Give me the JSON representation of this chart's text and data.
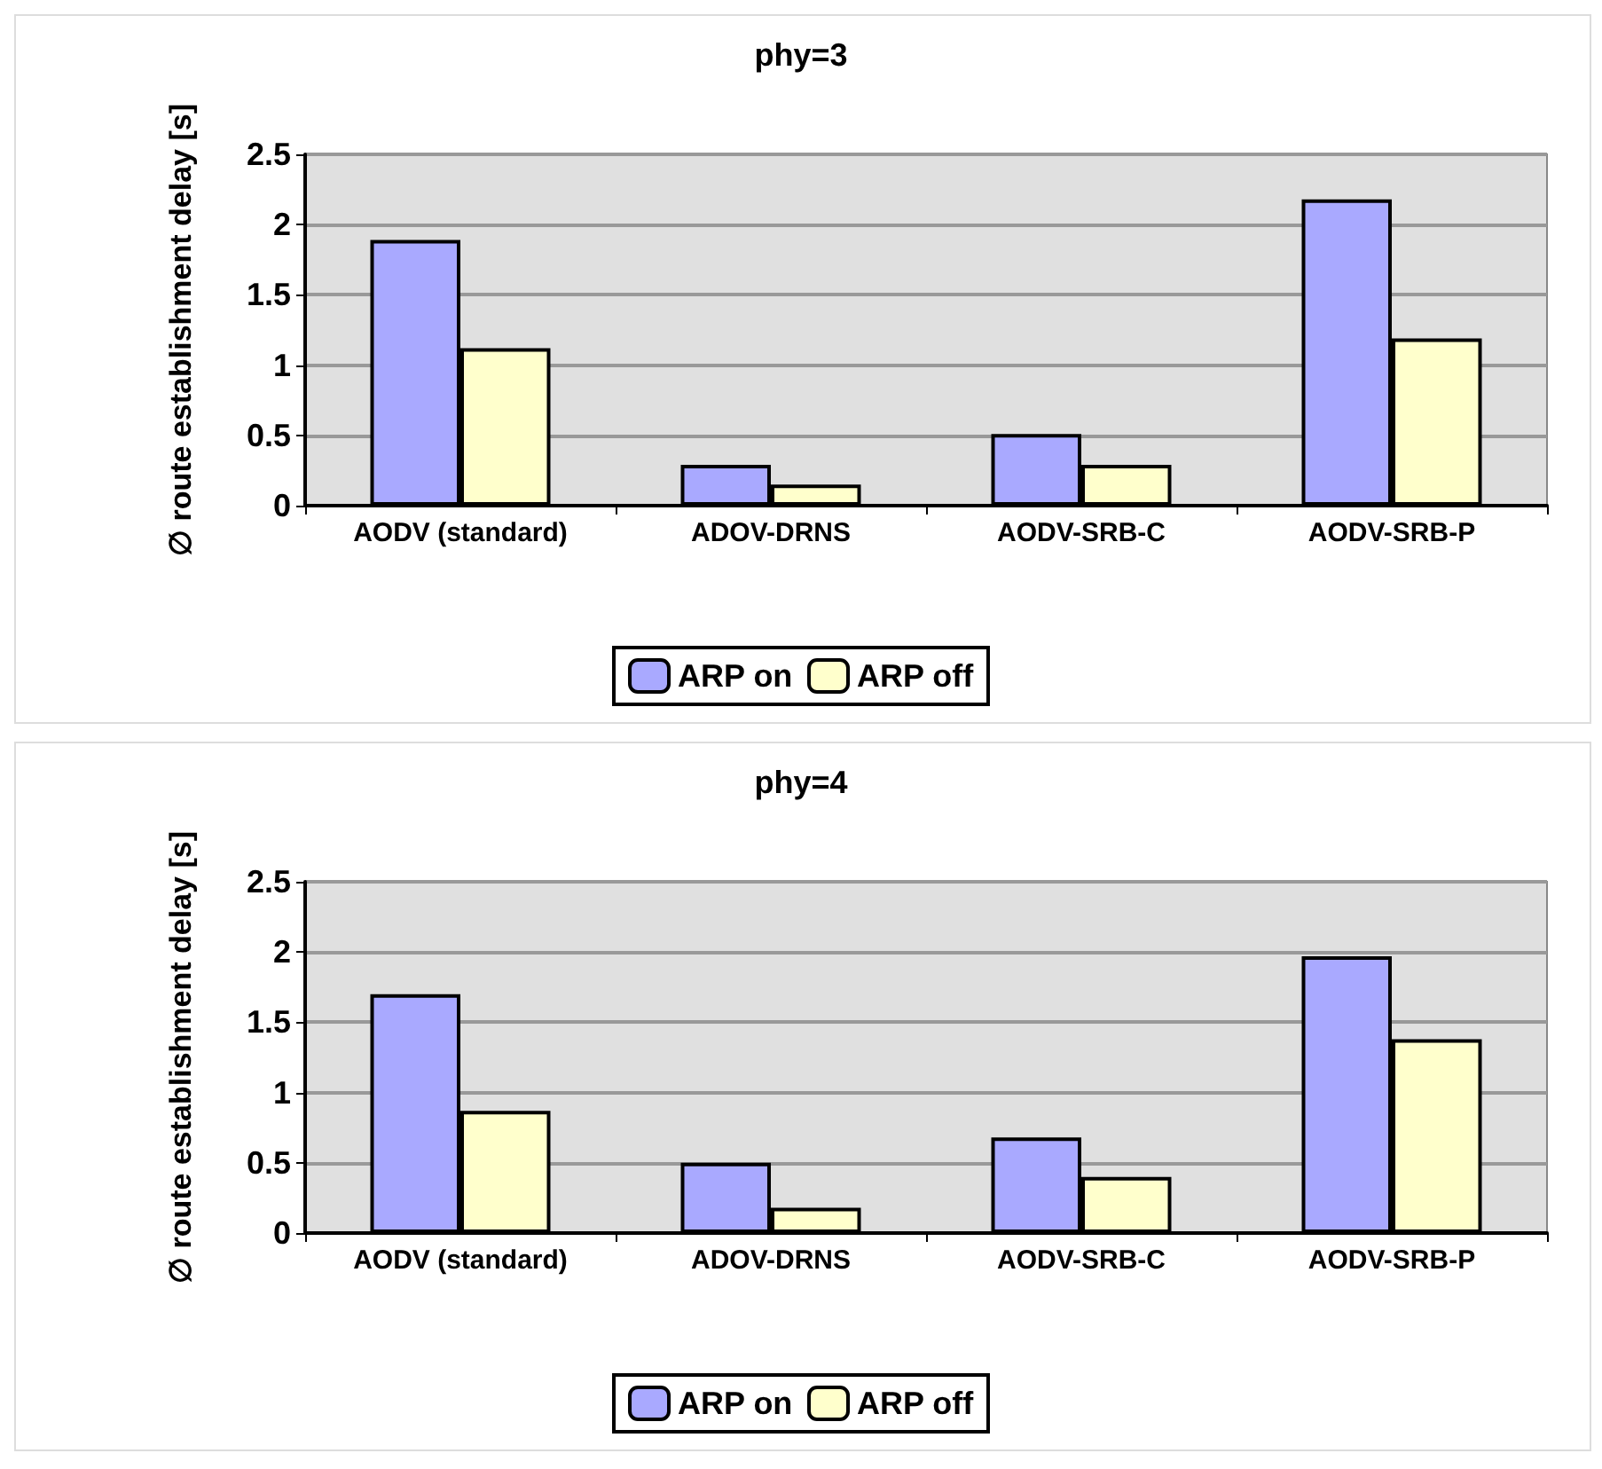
{
  "chart_data": [
    {
      "type": "bar",
      "title": "phy=3",
      "ylabel": "∅ route establishment delay [s]",
      "categories": [
        "AODV (standard)",
        "ADOV-DRNS",
        "AODV-SRB-C",
        "AODV-SRB-P"
      ],
      "series": [
        {
          "name": "ARP on",
          "color": "#a9a9ff",
          "values": [
            1.89,
            0.29,
            0.51,
            2.18
          ]
        },
        {
          "name": "ARP off",
          "color": "#ffffcc",
          "values": [
            1.12,
            0.15,
            0.29,
            1.19
          ]
        }
      ],
      "ylim": [
        0,
        2.5
      ],
      "yticks": [
        0,
        0.5,
        1,
        1.5,
        2,
        2.5
      ],
      "grid": "y",
      "legend": "bottom"
    },
    {
      "type": "bar",
      "title": "phy=4",
      "ylabel": "∅ route establishment delay [s]",
      "categories": [
        "AODV (standard)",
        "ADOV-DRNS",
        "AODV-SRB-C",
        "AODV-SRB-P"
      ],
      "series": [
        {
          "name": "ARP on",
          "color": "#a9a9ff",
          "values": [
            1.7,
            0.5,
            0.68,
            1.97
          ]
        },
        {
          "name": "ARP off",
          "color": "#ffffcc",
          "values": [
            0.87,
            0.18,
            0.4,
            1.38
          ]
        }
      ],
      "ylim": [
        0,
        2.5
      ],
      "yticks": [
        0,
        0.5,
        1,
        1.5,
        2,
        2.5
      ],
      "grid": "y",
      "legend": "bottom"
    }
  ]
}
